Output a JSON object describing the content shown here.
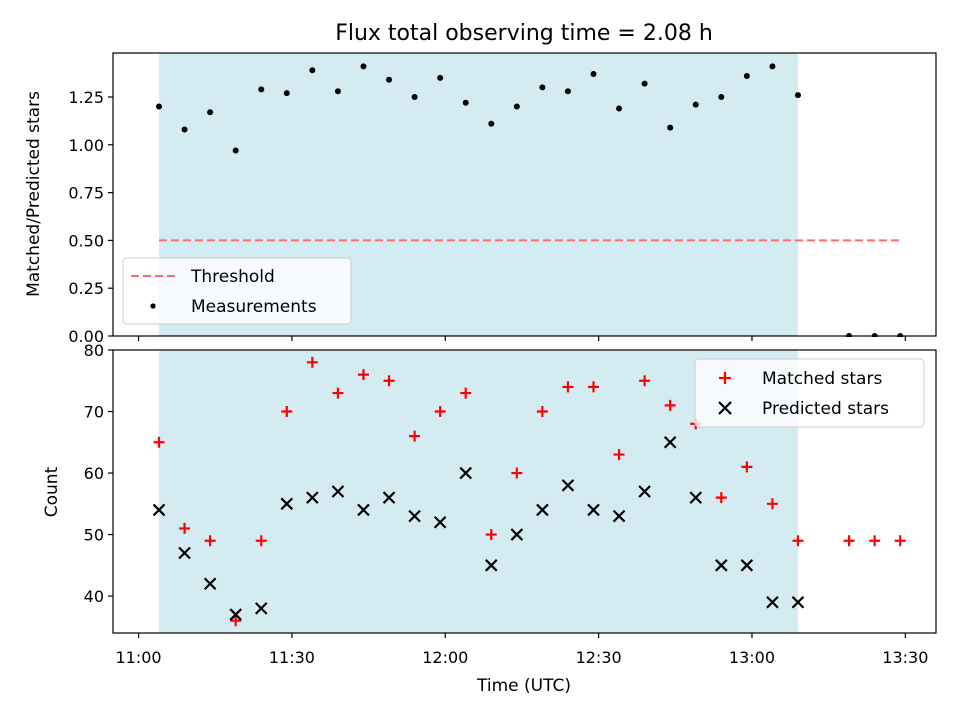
{
  "chart_data": [
    {
      "type": "scatter",
      "title": "Flux total observing time = 2.08 h",
      "xlabel": "",
      "ylabel": "Matched/Predicted stars",
      "xlim": [
        "10:55",
        "13:36"
      ],
      "ylim": [
        0,
        1.48
      ],
      "yticks": [
        "0.00",
        "0.25",
        "0.50",
        "0.75",
        "1.00",
        "1.25"
      ],
      "grid": false,
      "legend_position": "bottom-left",
      "shaded_interval": [
        "11:04",
        "13:09"
      ],
      "shade_color": "#add8e6",
      "series": [
        {
          "name": "Threshold",
          "style": "dashed-line",
          "color": "#ff6b6b",
          "points": [
            [
              "11:04",
              0.5
            ],
            [
              "13:29",
              0.5
            ]
          ]
        },
        {
          "name": "Measurements",
          "style": "dot",
          "color": "#000000",
          "points": [
            [
              "11:04",
              1.2
            ],
            [
              "11:09",
              1.08
            ],
            [
              "11:14",
              1.17
            ],
            [
              "11:19",
              0.97
            ],
            [
              "11:24",
              1.29
            ],
            [
              "11:29",
              1.27
            ],
            [
              "11:34",
              1.39
            ],
            [
              "11:39",
              1.28
            ],
            [
              "11:44",
              1.41
            ],
            [
              "11:49",
              1.34
            ],
            [
              "11:54",
              1.25
            ],
            [
              "11:59",
              1.35
            ],
            [
              "12:04",
              1.22
            ],
            [
              "12:09",
              1.11
            ],
            [
              "12:14",
              1.2
            ],
            [
              "12:19",
              1.3
            ],
            [
              "12:24",
              1.28
            ],
            [
              "12:29",
              1.37
            ],
            [
              "12:34",
              1.19
            ],
            [
              "12:39",
              1.32
            ],
            [
              "12:44",
              1.09
            ],
            [
              "12:49",
              1.21
            ],
            [
              "12:54",
              1.25
            ],
            [
              "12:59",
              1.36
            ],
            [
              "13:04",
              1.41
            ],
            [
              "13:09",
              1.26
            ],
            [
              "13:19",
              0
            ],
            [
              "13:24",
              0
            ],
            [
              "13:29",
              0
            ]
          ]
        }
      ]
    },
    {
      "type": "scatter",
      "title": "",
      "xlabel": "Time (UTC)",
      "ylabel": "Count",
      "xlim": [
        "10:55",
        "13:36"
      ],
      "ylim": [
        34,
        80
      ],
      "xticks": [
        "11:00",
        "11:30",
        "12:00",
        "12:30",
        "13:00",
        "13:30"
      ],
      "yticks": [
        "40",
        "50",
        "60",
        "70",
        "80"
      ],
      "grid": false,
      "legend_position": "top-right",
      "shaded_interval": [
        "11:04",
        "13:09"
      ],
      "shade_color": "#add8e6",
      "series": [
        {
          "name": "Matched stars",
          "style": "plus",
          "color": "#ff0000",
          "points": [
            [
              "11:04",
              65
            ],
            [
              "11:09",
              51
            ],
            [
              "11:14",
              49
            ],
            [
              "11:19",
              36
            ],
            [
              "11:24",
              49
            ],
            [
              "11:29",
              70
            ],
            [
              "11:34",
              78
            ],
            [
              "11:39",
              73
            ],
            [
              "11:44",
              76
            ],
            [
              "11:49",
              75
            ],
            [
              "11:54",
              66
            ],
            [
              "11:59",
              70
            ],
            [
              "12:04",
              73
            ],
            [
              "12:09",
              50
            ],
            [
              "12:14",
              60
            ],
            [
              "12:19",
              70
            ],
            [
              "12:24",
              74
            ],
            [
              "12:29",
              74
            ],
            [
              "12:34",
              63
            ],
            [
              "12:39",
              75
            ],
            [
              "12:44",
              71
            ],
            [
              "12:49",
              68
            ],
            [
              "12:54",
              56
            ],
            [
              "12:59",
              61
            ],
            [
              "13:04",
              55
            ],
            [
              "13:09",
              49
            ],
            [
              "13:19",
              49
            ],
            [
              "13:24",
              49
            ],
            [
              "13:29",
              49
            ]
          ]
        },
        {
          "name": "Predicted stars",
          "style": "x",
          "color": "#000000",
          "points": [
            [
              "11:04",
              54
            ],
            [
              "11:09",
              47
            ],
            [
              "11:14",
              42
            ],
            [
              "11:19",
              37
            ],
            [
              "11:24",
              38
            ],
            [
              "11:29",
              55
            ],
            [
              "11:34",
              56
            ],
            [
              "11:39",
              57
            ],
            [
              "11:44",
              54
            ],
            [
              "11:49",
              56
            ],
            [
              "11:54",
              53
            ],
            [
              "11:59",
              52
            ],
            [
              "12:04",
              60
            ],
            [
              "12:09",
              45
            ],
            [
              "12:14",
              50
            ],
            [
              "12:19",
              54
            ],
            [
              "12:24",
              58
            ],
            [
              "12:29",
              54
            ],
            [
              "12:34",
              53
            ],
            [
              "12:39",
              57
            ],
            [
              "12:44",
              65
            ],
            [
              "12:49",
              56
            ],
            [
              "12:54",
              45
            ],
            [
              "12:59",
              45
            ],
            [
              "13:04",
              39
            ],
            [
              "13:09",
              39
            ]
          ]
        }
      ]
    }
  ]
}
